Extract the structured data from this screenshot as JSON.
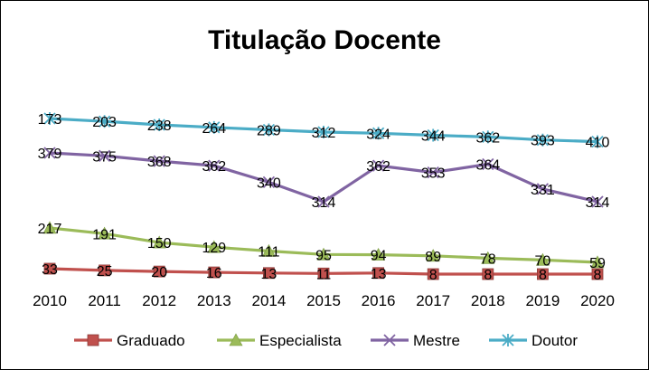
{
  "chart_data": {
    "type": "line",
    "title": "Titulação Docente",
    "xlabel": "",
    "ylabel": "",
    "x": [
      "2010",
      "2011",
      "2012",
      "2013",
      "2014",
      "2015",
      "2016",
      "2017",
      "2018",
      "2019",
      "2020"
    ],
    "ylim": [
      0,
      400
    ],
    "grid": false,
    "legend_position": "bottom",
    "series": [
      {
        "name": "Graduado",
        "color": "#C0504D",
        "marker": "square",
        "values": [
          33,
          25,
          20,
          16,
          13,
          11,
          13,
          8,
          8,
          8,
          8
        ]
      },
      {
        "name": "Especialista",
        "color": "#9BBB59",
        "marker": "triangle",
        "values": [
          217,
          191,
          150,
          129,
          111,
          95,
          94,
          89,
          78,
          70,
          59
        ]
      },
      {
        "name": "Mestre",
        "color": "#8064A2",
        "marker": "x",
        "values": [
          379,
          375,
          368,
          362,
          340,
          314,
          362,
          353,
          364,
          331,
          314
        ]
      },
      {
        "name": "Doutor",
        "color": "#4BACC6",
        "marker": "star",
        "values": [
          173,
          203,
          238,
          264,
          289,
          312,
          324,
          344,
          362,
          393,
          410
        ]
      }
    ]
  }
}
